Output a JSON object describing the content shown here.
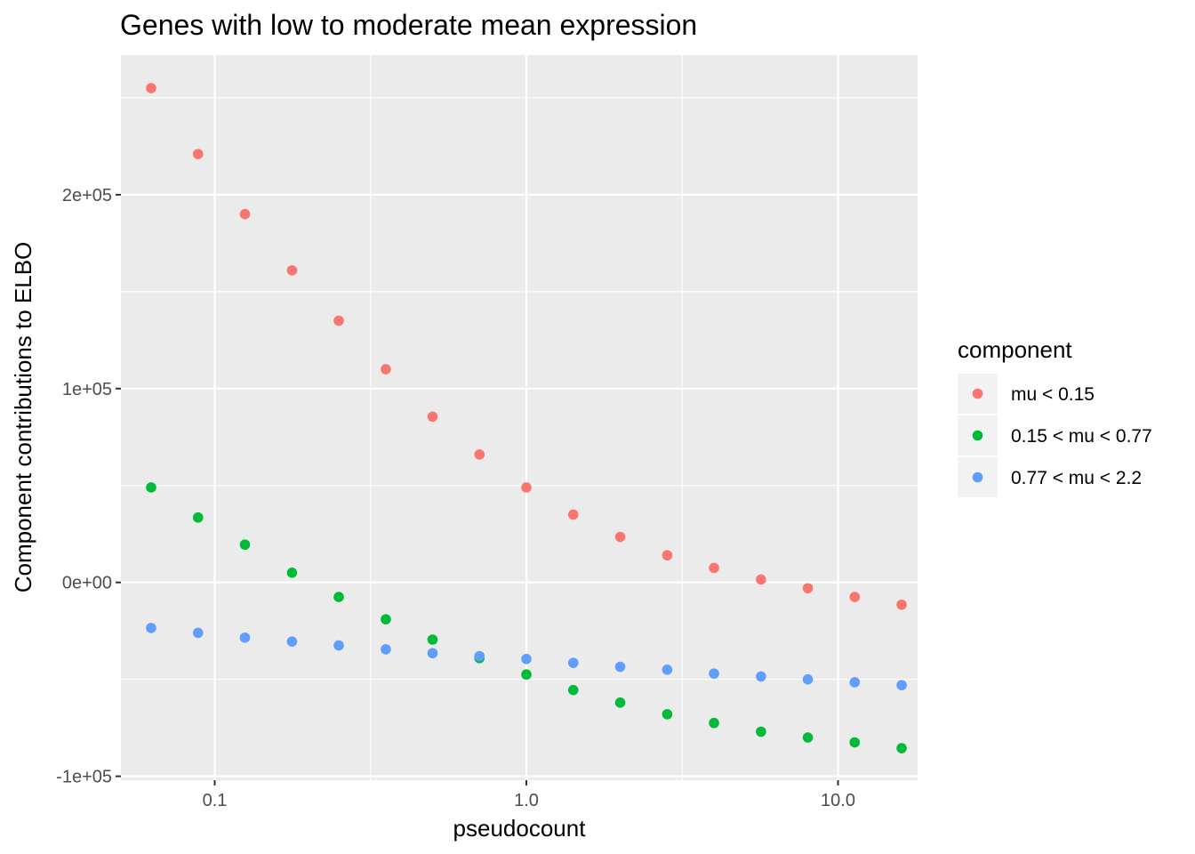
{
  "chart_data": {
    "type": "scatter",
    "title": "Genes with low to moderate mean expression",
    "xlabel": "pseudocount",
    "ylabel": "Component contributions to ELBO",
    "x_scale": "log10",
    "xlim": [
      0.05,
      18
    ],
    "ylim": [
      -102000,
      272000
    ],
    "grid": true,
    "x_ticks": [
      {
        "value": 0.1,
        "label": "0.1"
      },
      {
        "value": 1,
        "label": "1.0"
      },
      {
        "value": 10,
        "label": "10.0"
      }
    ],
    "x_minor_ticks": [
      0.3162,
      3.162
    ],
    "y_ticks": [
      {
        "value": -100000,
        "label": "-1e+05"
      },
      {
        "value": 0,
        "label": "0e+00"
      },
      {
        "value": 100000,
        "label": "1e+05"
      },
      {
        "value": 200000,
        "label": "2e+05"
      }
    ],
    "y_minor_ticks": [
      -50000,
      50000,
      150000,
      250000
    ],
    "x": [
      0.0625,
      0.0884,
      0.125,
      0.177,
      0.25,
      0.354,
      0.5,
      0.707,
      1.0,
      1.414,
      2.0,
      2.83,
      4.0,
      5.66,
      8.0,
      11.31,
      16.0
    ],
    "legend": {
      "title": "component",
      "position": "right"
    },
    "series": [
      {
        "name": "mu < 0.15",
        "color": "#F8766D",
        "values": [
          255000,
          221000,
          190000,
          161000,
          135000,
          110000,
          85500,
          66000,
          49000,
          35000,
          23500,
          14000,
          7500,
          1500,
          -3000,
          -7500,
          -11500
        ]
      },
      {
        "name": "0.15 < mu < 0.77",
        "color": "#00BA38",
        "values": [
          49000,
          33500,
          19500,
          5000,
          -7500,
          -19000,
          -29500,
          -39000,
          -47500,
          -55500,
          -62000,
          -68000,
          -72500,
          -77000,
          -80000,
          -82500,
          -85500
        ]
      },
      {
        "name": "0.77 < mu < 2.2",
        "color": "#619CFF",
        "values": [
          -23500,
          -26000,
          -28500,
          -30500,
          -32500,
          -34500,
          -36500,
          -38000,
          -39500,
          -41500,
          -43500,
          -45000,
          -47000,
          -48500,
          -50000,
          -51500,
          -53000
        ]
      }
    ]
  }
}
